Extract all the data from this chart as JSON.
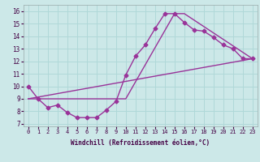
{
  "xlabel": "Windchill (Refroidissement éolien,°C)",
  "bg_color": "#cce8e8",
  "grid_color": "#b0d8d8",
  "line_color": "#993399",
  "xlim": [
    -0.5,
    23.5
  ],
  "ylim": [
    6.8,
    16.5
  ],
  "xticks": [
    0,
    1,
    2,
    3,
    4,
    5,
    6,
    7,
    8,
    9,
    10,
    11,
    12,
    13,
    14,
    15,
    16,
    17,
    18,
    19,
    20,
    21,
    22,
    23
  ],
  "yticks": [
    7,
    8,
    9,
    10,
    11,
    12,
    13,
    14,
    15,
    16
  ],
  "line1_x": [
    0,
    1,
    2,
    3,
    4,
    5,
    6,
    7,
    8,
    9,
    10,
    11,
    12,
    13,
    14,
    15,
    16,
    17,
    18,
    19,
    20,
    21,
    22,
    23
  ],
  "line1_y": [
    10.0,
    9.0,
    8.3,
    8.5,
    7.9,
    7.5,
    7.5,
    7.5,
    8.1,
    8.8,
    10.9,
    12.4,
    13.3,
    14.6,
    15.8,
    15.8,
    15.1,
    14.5,
    14.4,
    13.9,
    13.3,
    13.0,
    12.2,
    12.2
  ],
  "line2_x": [
    0,
    23
  ],
  "line2_y": [
    9.0,
    12.2
  ],
  "line3_x": [
    0,
    10,
    15,
    16,
    23
  ],
  "line3_y": [
    9.0,
    9.0,
    15.8,
    15.8,
    12.2
  ],
  "xlabel_fontsize": 5.5,
  "tick_fontsize": 5,
  "line_width": 1.0,
  "marker_size": 2.5
}
